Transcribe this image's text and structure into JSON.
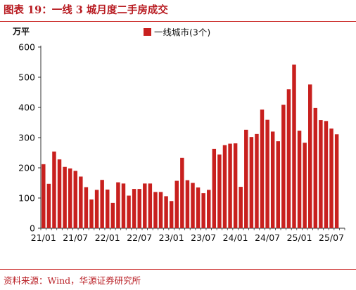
{
  "figure": {
    "title": "图表 19：一线 3 城月度二手房成交",
    "source": "资料来源：Wind，华源证券研究所"
  },
  "colors": {
    "accent": "#b81c22",
    "bar": "#c8201e",
    "axis": "#333333"
  },
  "chart_data": {
    "type": "bar",
    "ylabel": "万平",
    "ylim": [
      0,
      600
    ],
    "yticks": [
      0,
      100,
      200,
      300,
      400,
      500,
      600
    ],
    "grid": false,
    "legend_position": "top-center",
    "xtick_labels": [
      "21/01",
      "21/07",
      "22/01",
      "22/07",
      "23/01",
      "23/07",
      "24/01",
      "24/07",
      "25/01",
      "25/07"
    ],
    "categories": [
      "21/01",
      "21/02",
      "21/03",
      "21/04",
      "21/05",
      "21/06",
      "21/07",
      "21/08",
      "21/09",
      "21/10",
      "21/11",
      "21/12",
      "22/01",
      "22/02",
      "22/03",
      "22/04",
      "22/05",
      "22/06",
      "22/07",
      "22/08",
      "22/09",
      "22/10",
      "22/11",
      "22/12",
      "23/01",
      "23/02",
      "23/03",
      "23/04",
      "23/05",
      "23/06",
      "23/07",
      "23/08",
      "23/09",
      "23/10",
      "23/11",
      "23/12",
      "24/01",
      "24/02",
      "24/03",
      "24/04",
      "24/05",
      "24/06",
      "24/07",
      "24/08",
      "24/09",
      "24/10",
      "24/11",
      "24/12",
      "25/01",
      "25/02",
      "25/03",
      "25/04",
      "25/05",
      "25/06",
      "25/07",
      "25/08",
      "25/09"
    ],
    "series": [
      {
        "name": "一线城市(3个)",
        "values": [
          212,
          147,
          254,
          228,
          203,
          198,
          190,
          171,
          136,
          95,
          127,
          160,
          128,
          84,
          152,
          148,
          108,
          130,
          130,
          148,
          148,
          120,
          120,
          106,
          90,
          157,
          233,
          159,
          150,
          135,
          116,
          127,
          263,
          244,
          275,
          280,
          281,
          137,
          326,
          302,
          312,
          393,
          359,
          320,
          288,
          409,
          460,
          542,
          323,
          283,
          476,
          398,
          358,
          355,
          330,
          311,
          0
        ]
      }
    ]
  }
}
